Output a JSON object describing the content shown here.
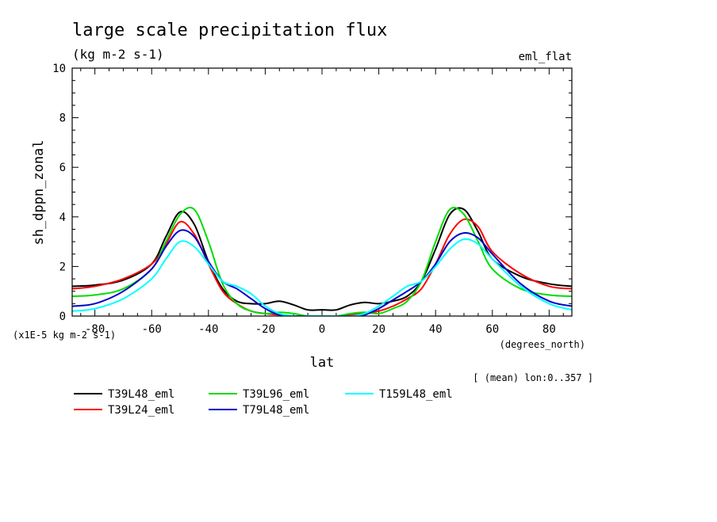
{
  "chart_data": {
    "type": "line",
    "title": "large scale precipitation flux",
    "subtitle": "(kg m-2 s-1)",
    "experiment": "eml_flat",
    "xlabel": "lat",
    "xunits": "(degrees_north)",
    "ylabel": "sh_dppn_zonal",
    "yunits": "(x1E-5 kg m-2 s-1)",
    "note": "[ (mean) lon:0..357 ]",
    "xlim": [
      -88,
      88
    ],
    "ylim": [
      0,
      10
    ],
    "xticks": [
      -80,
      -60,
      -40,
      -20,
      0,
      20,
      40,
      60,
      80
    ],
    "xtick_labels": [
      "-80",
      "-60",
      "-40",
      "-20",
      "0",
      "20",
      "40",
      "60",
      "80"
    ],
    "yticks": [
      0,
      2,
      4,
      6,
      8,
      10
    ],
    "ytick_labels": [
      "0",
      "2",
      "4",
      "6",
      "8",
      "10"
    ],
    "x": [
      -88,
      -80,
      -70,
      -60,
      -55,
      -50,
      -45,
      -40,
      -35,
      -30,
      -25,
      -20,
      -15,
      -10,
      -5,
      0,
      5,
      10,
      15,
      20,
      25,
      30,
      35,
      40,
      45,
      50,
      55,
      60,
      70,
      80,
      88
    ],
    "series": [
      {
        "name": "T39L48_eml",
        "color": "#000000",
        "values": [
          1.2,
          1.25,
          1.45,
          2.1,
          3.2,
          4.2,
          3.7,
          2.2,
          1.1,
          0.6,
          0.5,
          0.5,
          0.6,
          0.45,
          0.25,
          0.25,
          0.25,
          0.45,
          0.55,
          0.5,
          0.6,
          0.8,
          1.4,
          2.7,
          4.1,
          4.3,
          3.4,
          2.3,
          1.6,
          1.3,
          1.2
        ]
      },
      {
        "name": "T39L24_eml",
        "color": "#ff0000",
        "values": [
          1.1,
          1.2,
          1.5,
          2.1,
          2.9,
          3.8,
          3.3,
          2.1,
          1.0,
          0.5,
          0.2,
          0.1,
          0.05,
          0.0,
          0.0,
          0.0,
          0.0,
          0.05,
          0.1,
          0.2,
          0.4,
          0.7,
          1.1,
          2.1,
          3.3,
          3.9,
          3.6,
          2.6,
          1.7,
          1.2,
          1.1
        ]
      },
      {
        "name": "T39L96_eml",
        "color": "#00dd00",
        "values": [
          0.8,
          0.85,
          1.1,
          1.9,
          3.0,
          4.1,
          4.3,
          3.0,
          1.3,
          0.5,
          0.2,
          0.1,
          0.15,
          0.1,
          0.0,
          0.0,
          0.0,
          0.1,
          0.15,
          0.1,
          0.3,
          0.6,
          1.4,
          3.0,
          4.3,
          4.1,
          3.0,
          1.9,
          1.1,
          0.85,
          0.8
        ]
      },
      {
        "name": "T79L48_eml",
        "color": "#0000cc",
        "values": [
          0.4,
          0.5,
          1.0,
          1.9,
          2.8,
          3.45,
          3.2,
          2.2,
          1.4,
          1.1,
          0.7,
          0.3,
          0.05,
          0.0,
          0.0,
          0.0,
          0.0,
          0.0,
          0.05,
          0.3,
          0.65,
          1.0,
          1.4,
          2.1,
          3.0,
          3.35,
          3.15,
          2.5,
          1.3,
          0.6,
          0.4
        ]
      },
      {
        "name": "T159L48_eml",
        "color": "#00ffff",
        "values": [
          0.2,
          0.3,
          0.7,
          1.5,
          2.3,
          3.0,
          2.8,
          2.1,
          1.4,
          1.2,
          0.9,
          0.4,
          0.1,
          0.0,
          0.0,
          0.0,
          0.0,
          0.0,
          0.1,
          0.4,
          0.8,
          1.2,
          1.4,
          2.0,
          2.7,
          3.1,
          2.9,
          2.3,
          1.2,
          0.5,
          0.25
        ]
      }
    ]
  }
}
